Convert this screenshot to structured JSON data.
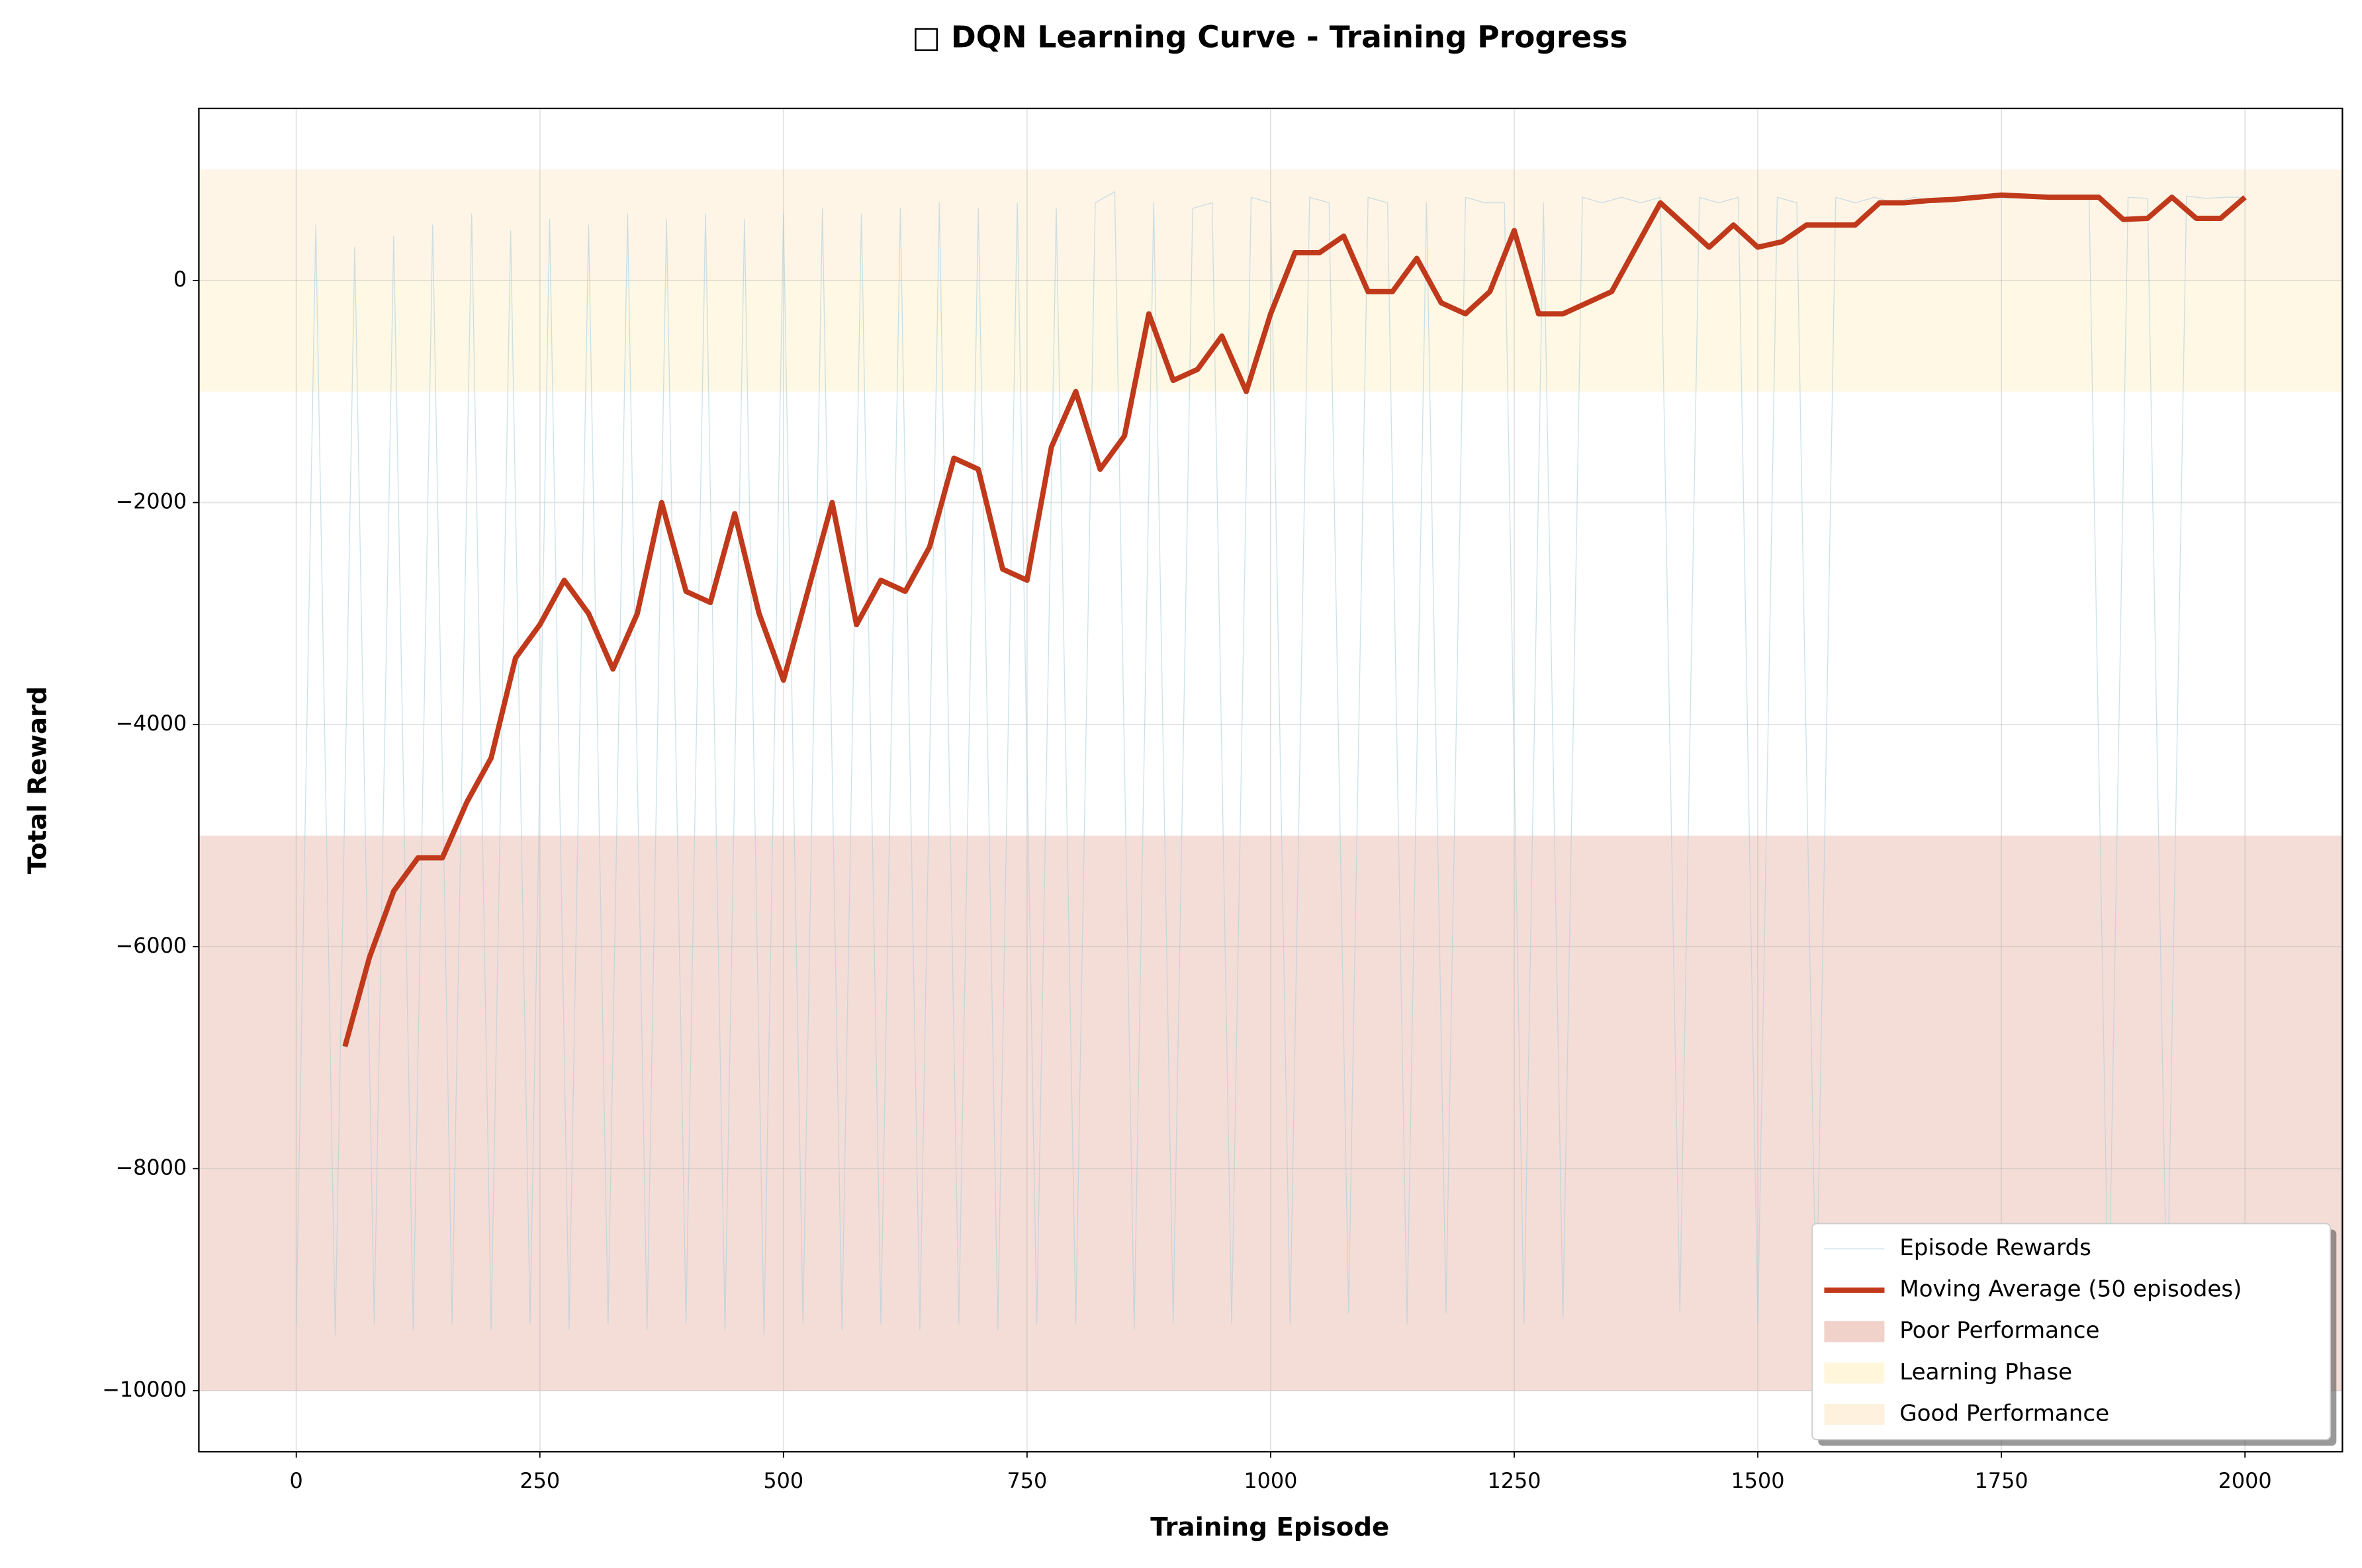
{
  "chart_data": {
    "type": "line",
    "title": "□ DQN Learning Curve - Training Progress",
    "x_label": "Training Episode",
    "y_label": "Total Reward",
    "xlim": [
      -100,
      2100
    ],
    "ylim": [
      -10550,
      1550
    ],
    "xticks": [
      0,
      250,
      500,
      750,
      1000,
      1250,
      1500,
      1750,
      2000
    ],
    "yticks": [
      {
        "value": -10000,
        "label": "−10000"
      },
      {
        "value": -8000,
        "label": "−8000"
      },
      {
        "value": -6000,
        "label": "−6000"
      },
      {
        "value": -4000,
        "label": "−4000"
      },
      {
        "value": -2000,
        "label": "−2000"
      },
      0
    ],
    "grid": true,
    "legend_position": "lower right",
    "series": [
      {
        "name": "Episode Rewards",
        "color": "#a9cfe0",
        "x": [
          0,
          20,
          40,
          60,
          80,
          100,
          120,
          140,
          160,
          180,
          200,
          220,
          240,
          260,
          280,
          300,
          320,
          340,
          360,
          380,
          400,
          420,
          440,
          460,
          480,
          500,
          520,
          540,
          560,
          580,
          600,
          620,
          640,
          660,
          680,
          700,
          720,
          740,
          760,
          780,
          800,
          820,
          840,
          860,
          880,
          900,
          920,
          940,
          960,
          980,
          1000,
          1020,
          1040,
          1060,
          1080,
          1100,
          1120,
          1140,
          1160,
          1180,
          1200,
          1220,
          1240,
          1260,
          1280,
          1300,
          1320,
          1340,
          1360,
          1380,
          1400,
          1420,
          1440,
          1460,
          1480,
          1500,
          1520,
          1540,
          1560,
          1580,
          1600,
          1620,
          1640,
          1660,
          1680,
          1700,
          1720,
          1740,
          1760,
          1780,
          1800,
          1820,
          1840,
          1860,
          1880,
          1900,
          1920,
          1940,
          1960,
          1980,
          2000
        ],
        "values": [
          -9400,
          500,
          -9500,
          300,
          -9400,
          400,
          -9450,
          500,
          -9400,
          600,
          -9450,
          450,
          -9400,
          550,
          -9450,
          500,
          -9400,
          600,
          -9450,
          550,
          -9400,
          600,
          -9450,
          550,
          -9500,
          600,
          -9400,
          650,
          -9450,
          600,
          -9400,
          650,
          -9450,
          700,
          -9400,
          650,
          -9450,
          700,
          -9400,
          650,
          -9400,
          700,
          800,
          -9450,
          700,
          -9400,
          650,
          700,
          -9400,
          750,
          700,
          -9400,
          750,
          700,
          -9300,
          750,
          700,
          -9400,
          700,
          -9300,
          750,
          700,
          700,
          -9400,
          700,
          -9350,
          750,
          700,
          750,
          700,
          750,
          -9300,
          750,
          700,
          750,
          -9400,
          750,
          700,
          -9400,
          750,
          700,
          750,
          700,
          750,
          720,
          750,
          730,
          750,
          740,
          760,
          740,
          750,
          740,
          -9400,
          750,
          740,
          -9400,
          760,
          740,
          750,
          750
        ]
      },
      {
        "name": "Moving Average (50 episodes)",
        "color": "#c0391b",
        "x": [
          50,
          75,
          100,
          125,
          150,
          175,
          200,
          225,
          250,
          275,
          300,
          325,
          350,
          375,
          400,
          425,
          450,
          475,
          500,
          525,
          550,
          575,
          600,
          625,
          650,
          675,
          700,
          725,
          750,
          775,
          800,
          825,
          850,
          875,
          900,
          925,
          950,
          975,
          1000,
          1025,
          1050,
          1075,
          1100,
          1125,
          1150,
          1175,
          1200,
          1225,
          1250,
          1275,
          1300,
          1325,
          1350,
          1375,
          1400,
          1425,
          1450,
          1475,
          1500,
          1525,
          1550,
          1575,
          1600,
          1625,
          1650,
          1675,
          1700,
          1725,
          1750,
          1775,
          1800,
          1825,
          1850,
          1875,
          1900,
          1925,
          1950,
          1975,
          2000
        ],
        "values": [
          -6900,
          -6100,
          -5500,
          -5200,
          -5200,
          -4700,
          -4300,
          -3400,
          -3100,
          -2700,
          -3000,
          -3500,
          -3000,
          -2000,
          -2800,
          -2900,
          -2100,
          -3000,
          -3600,
          -2800,
          -2000,
          -3100,
          -2700,
          -2800,
          -2400,
          -1600,
          -1700,
          -2600,
          -2700,
          -1500,
          -1000,
          -1700,
          -1400,
          -300,
          -900,
          -800,
          -500,
          -1000,
          -300,
          250,
          250,
          400,
          -100,
          -100,
          200,
          -200,
          -300,
          -100,
          450,
          -300,
          -300,
          -200,
          -100,
          300,
          700,
          500,
          300,
          500,
          300,
          350,
          500,
          500,
          500,
          700,
          700,
          720,
          730,
          750,
          770,
          760,
          750,
          750,
          750,
          550,
          560,
          750,
          560,
          560,
          750
        ]
      }
    ],
    "bands": [
      {
        "name": "Poor Performance",
        "color": "#e8b4a6",
        "range": [
          -10000,
          -5000
        ]
      },
      {
        "name": "Learning Phase",
        "color": "#fff0c4",
        "range": [
          -1000,
          0
        ]
      },
      {
        "name": "Good Performance",
        "color": "#fde9c8",
        "range": [
          0,
          1000
        ]
      }
    ]
  }
}
